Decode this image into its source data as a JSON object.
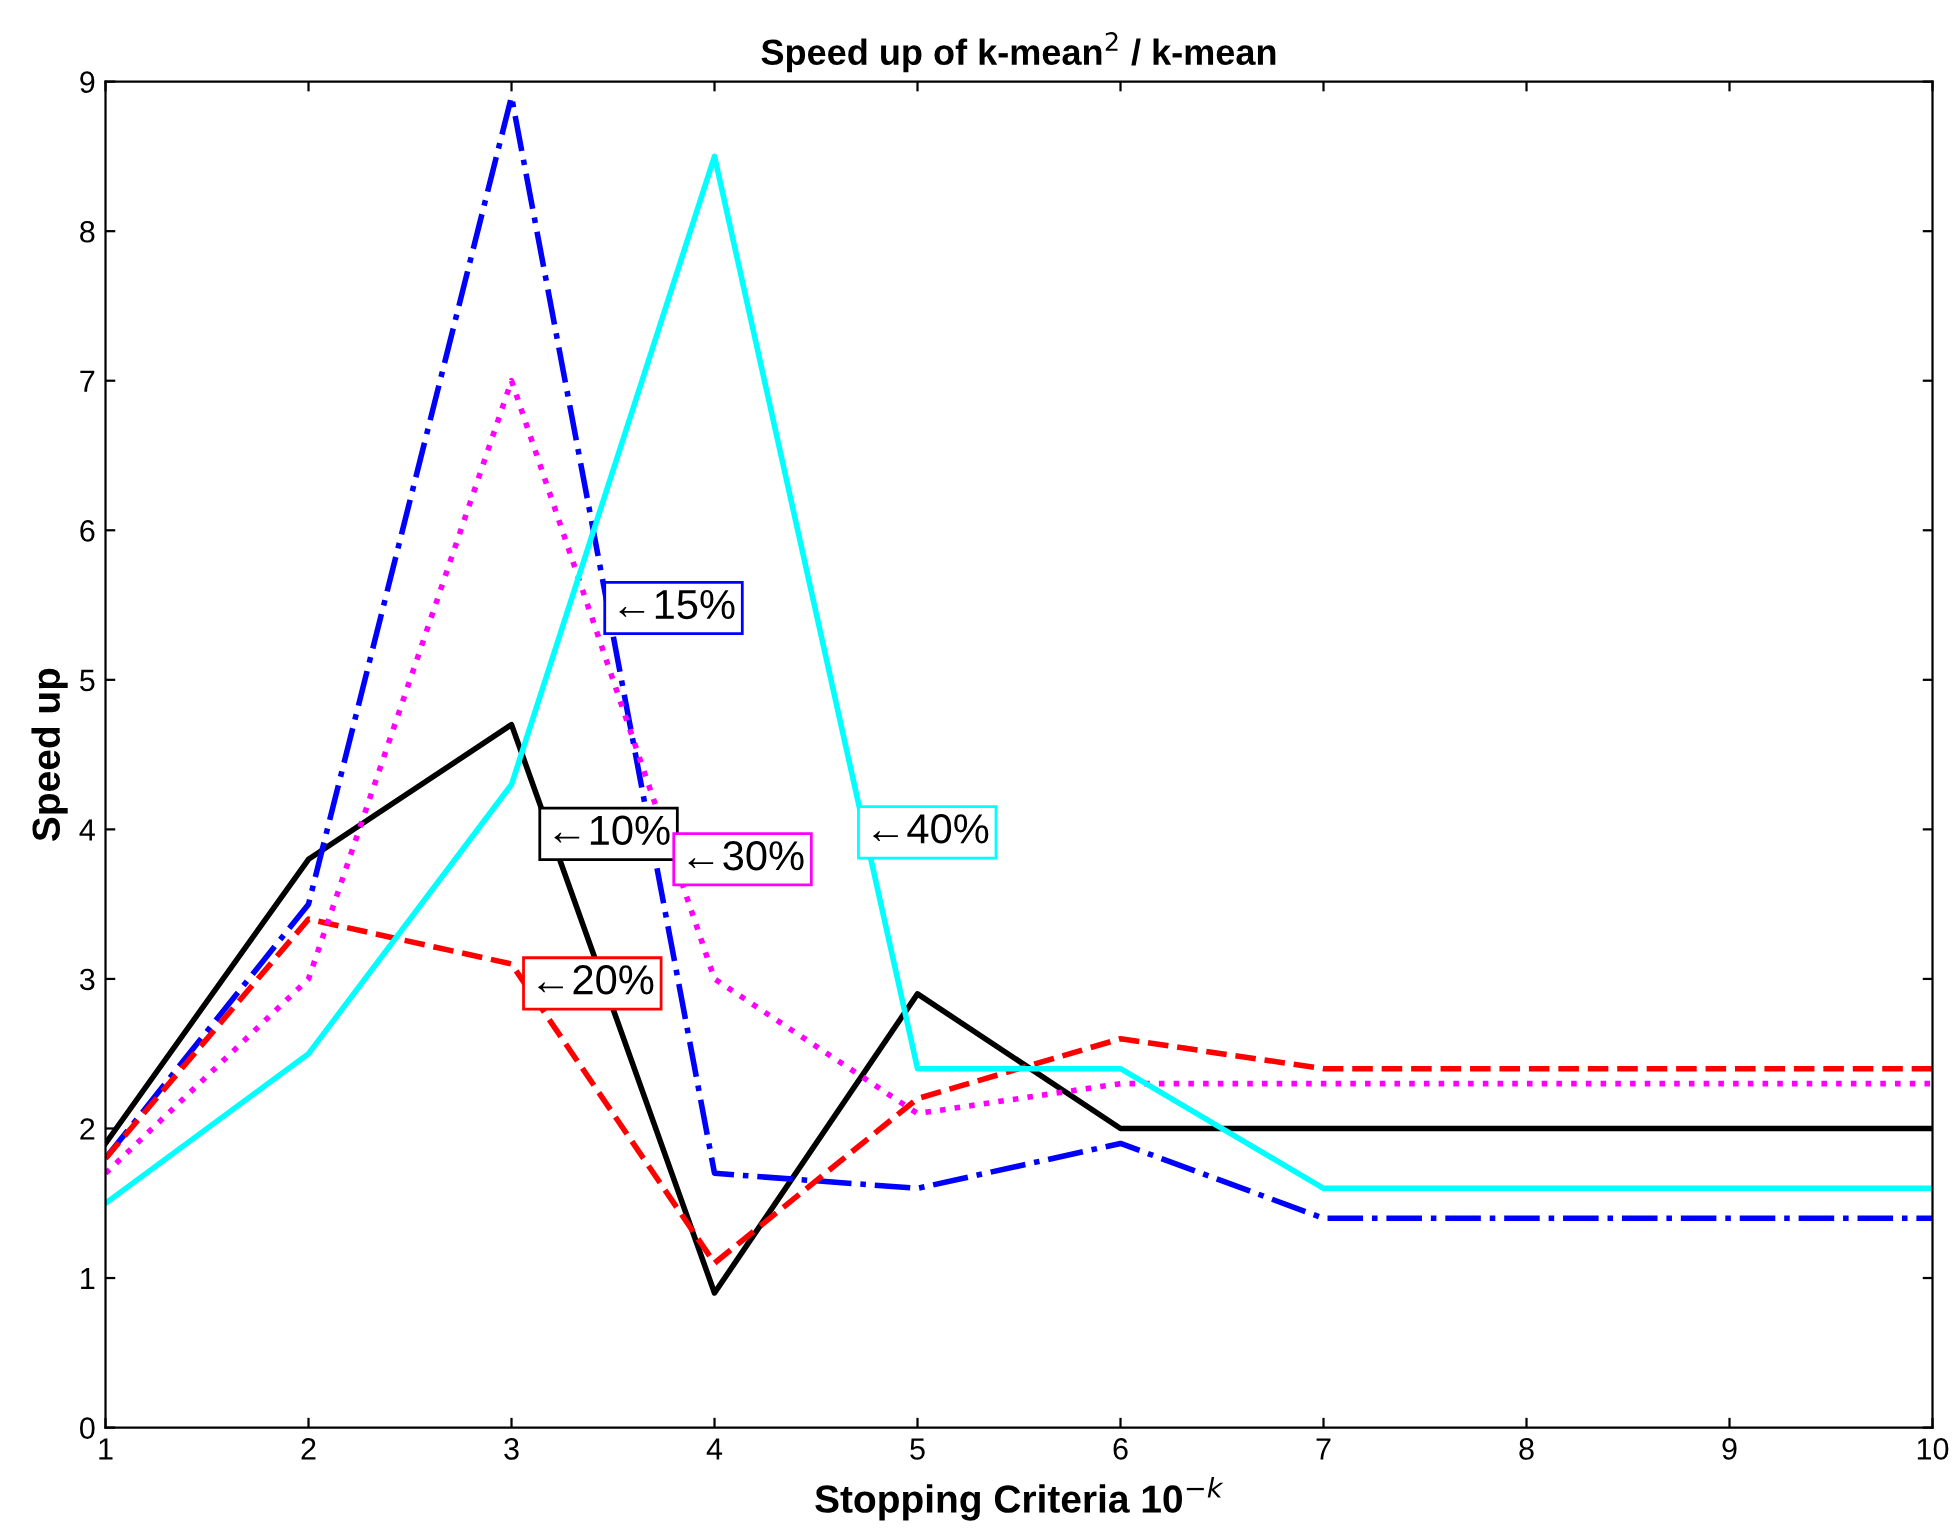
{
  "chart_data": {
    "type": "line",
    "title": "Speed up of k-mean$^{2}$ / k-mean",
    "xlabel": "Stopping Criteria 10$^{−k}$",
    "ylabel": "Speed up",
    "x": [
      1,
      2,
      3,
      4,
      5,
      6,
      7,
      8,
      9,
      10
    ],
    "series": [
      {
        "color": "#000000",
        "line_style": "solid",
        "values": [
          1.9,
          3.8,
          4.7,
          0.9,
          2.9,
          2.0,
          2.0,
          2.0,
          2.0,
          2.0
        ]
      },
      {
        "color": "#0000ff",
        "line_style": "dashdot",
        "values": [
          1.8,
          3.5,
          8.9,
          1.7,
          1.6,
          1.9,
          1.4,
          1.4,
          1.4,
          1.4
        ]
      },
      {
        "color": "#ff0000",
        "line_style": "dashed",
        "values": [
          1.8,
          3.4,
          3.1,
          1.1,
          2.2,
          2.6,
          2.4,
          2.4,
          2.4,
          2.4
        ]
      },
      {
        "color": "#ff00ff",
        "line_style": "dotted",
        "values": [
          1.7,
          3.0,
          7.0,
          3.0,
          2.1,
          2.3,
          2.3,
          2.3,
          2.3,
          2.3
        ]
      },
      {
        "color": "#00ffff",
        "line_style": "solid",
        "values": [
          1.5,
          2.5,
          4.3,
          8.5,
          2.4,
          2.4,
          1.6,
          1.6,
          1.6,
          1.6
        ]
      }
    ],
    "annotations": [
      {
        "text": "←10%",
        "x": 3.17,
        "y": 3.97
      },
      {
        "text": "←15%",
        "x": 3.49,
        "y": 5.48
      },
      {
        "text": "←20%",
        "x": 3.09,
        "y": 2.97
      },
      {
        "text": "←30%",
        "x": 3.83,
        "y": 3.8
      },
      {
        "text": "←40%",
        "x": 4.74,
        "y": 3.98
      }
    ],
    "xlim": [
      1,
      10
    ],
    "ylim": [
      0,
      9
    ],
    "xticks": [
      1,
      2,
      3,
      4,
      5,
      6,
      7,
      8,
      9,
      10
    ],
    "yticks": [
      0,
      1,
      2,
      3,
      4,
      5,
      6,
      7,
      8,
      9
    ],
    "grid": false,
    "legend": false,
    "marker": "none"
  }
}
